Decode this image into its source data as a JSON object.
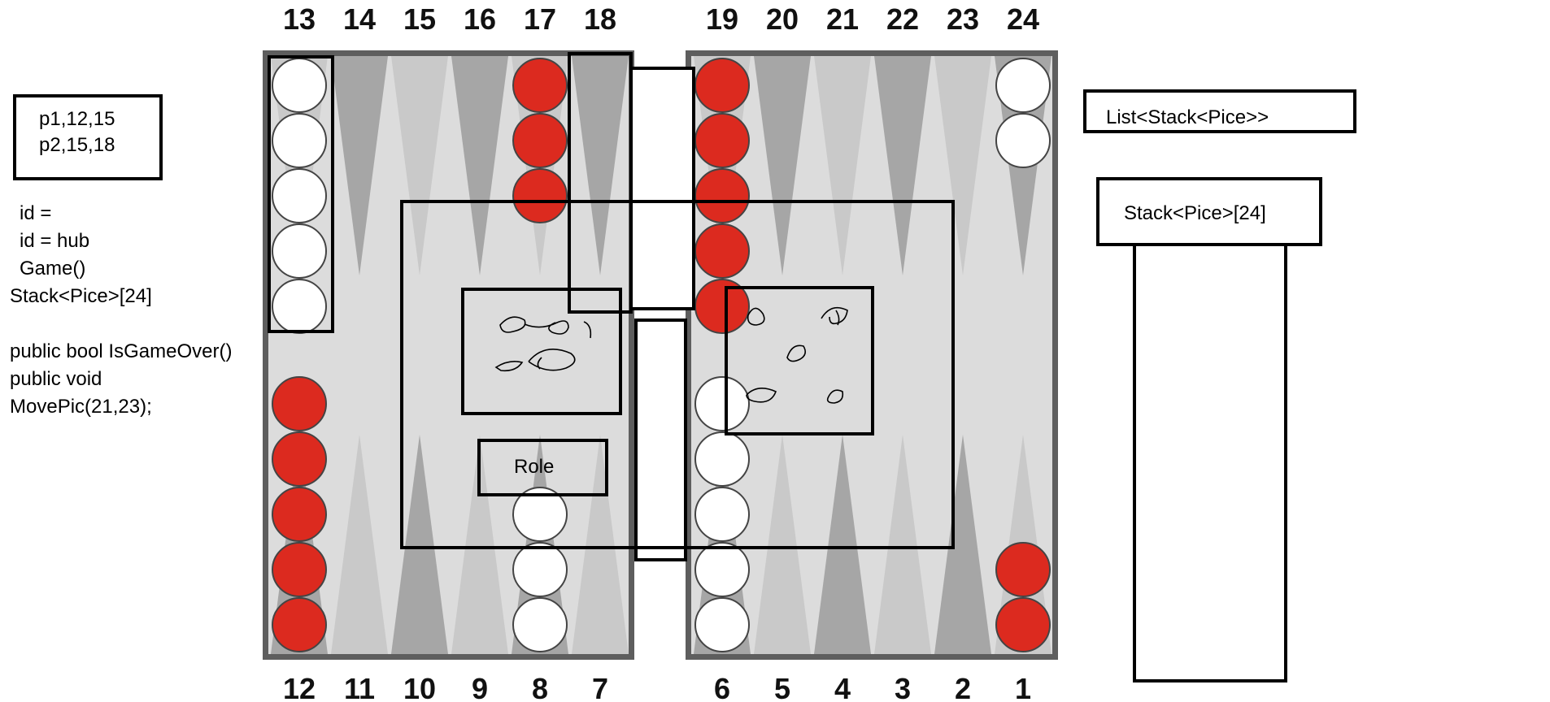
{
  "board": {
    "top_labels": [
      "13",
      "14",
      "15",
      "16",
      "17",
      "18",
      "19",
      "20",
      "21",
      "22",
      "23",
      "24"
    ],
    "bottom_labels": [
      "12",
      "11",
      "10",
      "9",
      "8",
      "7",
      "6",
      "5",
      "4",
      "3",
      "2",
      "1"
    ],
    "colors": {
      "frame": "#5e5e5e",
      "field": "#dcdcdc",
      "point_dark": "#a6a6a6",
      "point_light": "#c9c9c9",
      "red_checker": "#dc2a1f",
      "white_checker": "#ffffff",
      "outline": "#000000"
    },
    "checkers": [
      {
        "point": 13,
        "color": "white",
        "count": 5
      },
      {
        "point": 17,
        "color": "red",
        "count": 3
      },
      {
        "point": 19,
        "color": "red",
        "count": 5
      },
      {
        "point": 24,
        "color": "white",
        "count": 2
      },
      {
        "point": 12,
        "color": "red",
        "count": 5
      },
      {
        "point": 8,
        "color": "white",
        "count": 3
      },
      {
        "point": 6,
        "color": "white",
        "count": 5
      },
      {
        "point": 1,
        "color": "red",
        "count": 2
      }
    ]
  },
  "notes": {
    "players": [
      "p1,12,15",
      "p2,15,18"
    ],
    "code_lines": [
      "id =",
      "id = hub",
      "Game()",
      "Stack<Pice>[24]",
      "",
      "public bool IsGameOver()",
      "public void",
      "MovePic(21,23);"
    ],
    "list_label": "List<Stack<Pice>>",
    "stack_label": "Stack<Pice>[24]",
    "role_label": "Role"
  }
}
